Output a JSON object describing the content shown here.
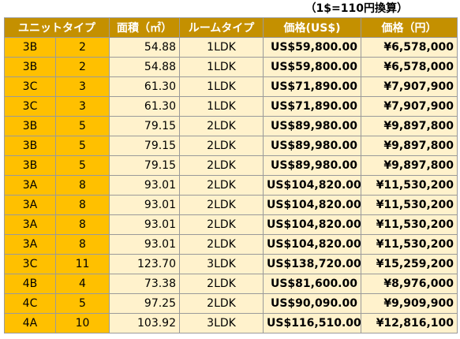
{
  "note": "（1$=110円換算）",
  "headers": [
    "ユニットタイプ",
    "面積（㎡）",
    "ルームタイプ",
    "価格(US$)",
    "価格（円）"
  ],
  "rows": [
    [
      "3B",
      "2",
      "54.88",
      "1LDK",
      "US$59,800.00",
      "¥6,578,000"
    ],
    [
      "3B",
      "2",
      "54.88",
      "1LDK",
      "US$59,800.00",
      "¥6,578,000"
    ],
    [
      "3C",
      "3",
      "61.30",
      "1LDK",
      "US$71,890.00",
      "¥7,907,900"
    ],
    [
      "3C",
      "3",
      "61.30",
      "1LDK",
      "US$71,890.00",
      "¥7,907,900"
    ],
    [
      "3B",
      "5",
      "79.15",
      "2LDK",
      "US$89,980.00",
      "¥9,897,800"
    ],
    [
      "3B",
      "5",
      "79.15",
      "2LDK",
      "US$89,980.00",
      "¥9,897,800"
    ],
    [
      "3B",
      "5",
      "79.15",
      "2LDK",
      "US$89,980.00",
      "¥9,897,800"
    ],
    [
      "3A",
      "8",
      "93.01",
      "2LDK",
      "US$104,820.00",
      "¥11,530,200"
    ],
    [
      "3A",
      "8",
      "93.01",
      "2LDK",
      "US$104,820.00",
      "¥11,530,200"
    ],
    [
      "3A",
      "8",
      "93.01",
      "2LDK",
      "US$104,820.00",
      "¥11,530,200"
    ],
    [
      "3A",
      "8",
      "93.01",
      "2LDK",
      "US$104,820.00",
      "¥11,530,200"
    ],
    [
      "3C",
      "11",
      "123.70",
      "3LDK",
      "US$138,720.00",
      "¥15,259,200"
    ],
    [
      "4B",
      "4",
      "73.38",
      "2LDK",
      "US$81,600.00",
      "¥8,976,000"
    ],
    [
      "4C",
      "5",
      "97.25",
      "2LDK",
      "US$90,090.00",
      "¥9,909,900"
    ],
    [
      "4A",
      "10",
      "103.92",
      "3LDK",
      "US$116,510.00",
      "¥12,816,100"
    ]
  ],
  "colors": {
    "header_bg": "#c49000",
    "unit_bg": "#ffc000",
    "data_bg": "#fff2cc"
  }
}
